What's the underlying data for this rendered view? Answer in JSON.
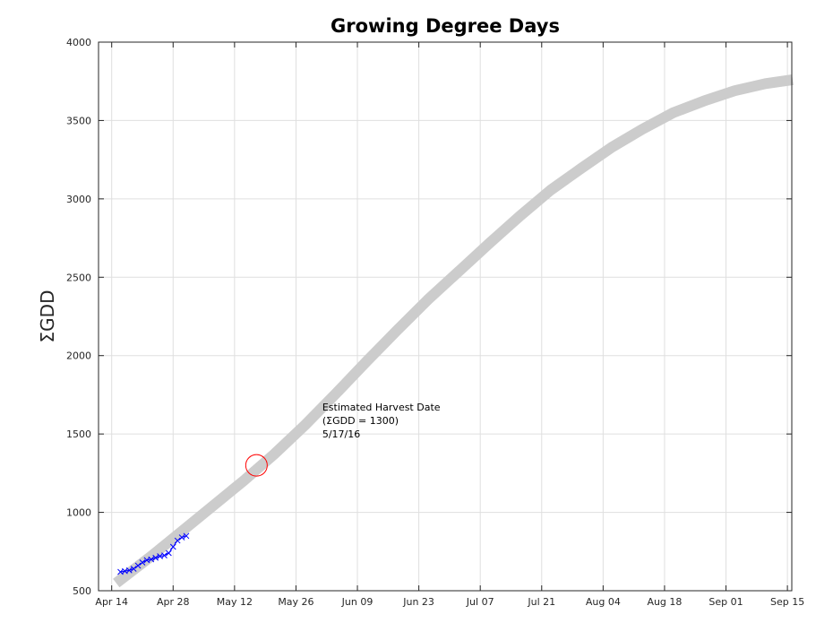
{
  "chart_data": {
    "type": "line",
    "title": "Growing Degree Days",
    "xlabel": "",
    "ylabel": "ΣGDD",
    "x_ticks": [
      "Apr 14",
      "Apr 28",
      "May 12",
      "May 26",
      "Jun 09",
      "Jun 23",
      "Jul 07",
      "Jul 21",
      "Aug 04",
      "Aug 18",
      "Sep 01",
      "Sep 15"
    ],
    "xlim": [
      "2016-04-11",
      "2016-09-16"
    ],
    "y_ticks": [
      500,
      1000,
      1500,
      2000,
      2500,
      3000,
      3500,
      4000
    ],
    "ylim": [
      500,
      4000
    ],
    "grid": true,
    "series": [
      {
        "style": "thick-gray-line",
        "color": "#cccccc",
        "points": [
          {
            "x": "2016-04-16",
            "y": 570
          },
          {
            "x": "2016-04-23",
            "y": 720
          },
          {
            "x": "2016-04-30",
            "y": 880
          },
          {
            "x": "2016-05-07",
            "y": 1040
          },
          {
            "x": "2016-05-14",
            "y": 1200
          },
          {
            "x": "2016-05-21",
            "y": 1370
          },
          {
            "x": "2016-05-28",
            "y": 1555
          },
          {
            "x": "2016-06-04",
            "y": 1755
          },
          {
            "x": "2016-06-11",
            "y": 1960
          },
          {
            "x": "2016-06-18",
            "y": 2160
          },
          {
            "x": "2016-06-25",
            "y": 2355
          },
          {
            "x": "2016-07-02",
            "y": 2535
          },
          {
            "x": "2016-07-09",
            "y": 2715
          },
          {
            "x": "2016-07-16",
            "y": 2890
          },
          {
            "x": "2016-07-23",
            "y": 3055
          },
          {
            "x": "2016-07-30",
            "y": 3195
          },
          {
            "x": "2016-08-06",
            "y": 3330
          },
          {
            "x": "2016-08-13",
            "y": 3445
          },
          {
            "x": "2016-08-20",
            "y": 3550
          },
          {
            "x": "2016-08-27",
            "y": 3625
          },
          {
            "x": "2016-09-03",
            "y": 3690
          },
          {
            "x": "2016-09-10",
            "y": 3735
          },
          {
            "x": "2016-09-15",
            "y": 3755
          }
        ]
      },
      {
        "style": "blue-x-markers",
        "color": "#0000ff",
        "points": [
          {
            "x": "2016-04-16",
            "y": 620
          },
          {
            "x": "2016-04-17",
            "y": 625
          },
          {
            "x": "2016-04-18",
            "y": 630
          },
          {
            "x": "2016-04-19",
            "y": 640
          },
          {
            "x": "2016-04-20",
            "y": 660
          },
          {
            "x": "2016-04-21",
            "y": 680
          },
          {
            "x": "2016-04-22",
            "y": 695
          },
          {
            "x": "2016-04-23",
            "y": 700
          },
          {
            "x": "2016-04-24",
            "y": 710
          },
          {
            "x": "2016-04-25",
            "y": 720
          },
          {
            "x": "2016-04-26",
            "y": 725
          },
          {
            "x": "2016-04-27",
            "y": 740
          },
          {
            "x": "2016-04-28",
            "y": 780
          },
          {
            "x": "2016-04-29",
            "y": 820
          },
          {
            "x": "2016-04-30",
            "y": 840
          },
          {
            "x": "2016-05-01",
            "y": 850
          }
        ]
      }
    ],
    "marker": {
      "style": "red-circle",
      "color": "#ff0000",
      "x": "2016-05-17",
      "y": 1300
    },
    "annotation": {
      "lines": [
        "Estimated Harvest Date",
        "(ΣGDD = 1300)",
        "5/17/16"
      ],
      "x": "2016-06-01",
      "y": 1650
    }
  }
}
